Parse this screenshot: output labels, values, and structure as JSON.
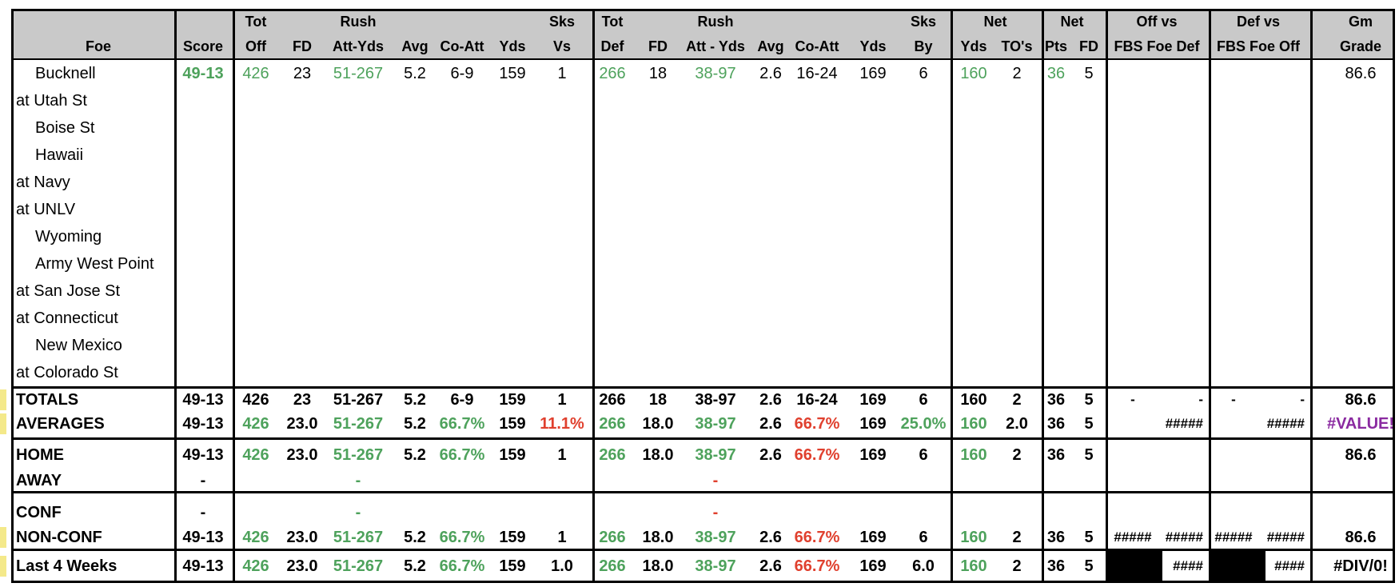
{
  "header": {
    "row1": {
      "tot_off": "Tot",
      "rush_off": "Rush",
      "sks_vs": "Sks",
      "tot_def": "Tot",
      "rush_def": "Rush",
      "sks_by": "Sks",
      "net_yds": "Net",
      "net_pts": "Net",
      "off_vs": "Off vs",
      "def_vs": "Def vs",
      "gm": "Gm"
    },
    "row2": {
      "foe": "Foe",
      "score": "Score",
      "off": "Off",
      "fd": "FD",
      "att_yds": "Att-Yds",
      "avg": "Avg",
      "co_att": "Co-Att",
      "yds": "Yds",
      "vs": "Vs",
      "def": "Def",
      "fd2": "FD",
      "att_yds2": "Att - Yds",
      "avg2": "Avg",
      "co_att2": "Co-Att",
      "yds2": "Yds",
      "by": "By",
      "net_yds": "Yds",
      "tos": "TO's",
      "pts": "Pts",
      "net_fd": "FD",
      "fbs_def": "FBS Foe Def",
      "fbs_off": "FBS Foe Off",
      "grade": "Grade"
    }
  },
  "games": [
    {
      "foe": "Bucknell",
      "away": false,
      "score": "49-13",
      "off": "426",
      "fd": "23",
      "rush": "51-267",
      "avg": "5.2",
      "coatt": "6-9",
      "yds": "159",
      "sks": "1",
      "def": "266",
      "dfd": "18",
      "drush": "38-97",
      "davg": "2.6",
      "dcoatt": "16-24",
      "dyds": "169",
      "dsks": "6",
      "netyds": "160",
      "tos": "2",
      "pts": "36",
      "netfd": "5",
      "grade": "86.6"
    },
    {
      "foe": "at Utah St",
      "away": true
    },
    {
      "foe": "Boise St",
      "away": false
    },
    {
      "foe": "Hawaii",
      "away": false
    },
    {
      "foe": "at Navy",
      "away": true
    },
    {
      "foe": "at UNLV",
      "away": true
    },
    {
      "foe": "Wyoming",
      "away": false
    },
    {
      "foe": "Army West Point",
      "away": false
    },
    {
      "foe": "at San Jose St",
      "away": true
    },
    {
      "foe": "at Connecticut",
      "away": true
    },
    {
      "foe": "New Mexico",
      "away": false
    },
    {
      "foe": "at Colorado St",
      "away": true
    }
  ],
  "summary": {
    "totals": {
      "label": "TOTALS",
      "score": "49-13",
      "off": "426",
      "fd": "23",
      "rush": "51-267",
      "avg": "5.2",
      "coatt": "6-9",
      "yds": "159",
      "sks": "1",
      "def": "266",
      "dfd": "18",
      "drush": "38-97",
      "davg": "2.6",
      "dcoatt": "16-24",
      "dyds": "169",
      "dsks": "6",
      "netyds": "160",
      "tos": "2",
      "pts": "36",
      "netfd": "5",
      "o1": "-",
      "o2": "-",
      "d1": "-",
      "d2": "-",
      "grade": "86.6"
    },
    "averages": {
      "label": "AVERAGES",
      "score": "49-13",
      "off": "426",
      "fd": "23.0",
      "rush": "51-267",
      "avg": "5.2",
      "coatt": "66.7%",
      "yds": "159",
      "sks": "11.1%",
      "def": "266",
      "dfd": "18.0",
      "drush": "38-97",
      "davg": "2.6",
      "dcoatt": "66.7%",
      "dyds": "169",
      "dsks": "25.0%",
      "netyds": "160",
      "tos": "2.0",
      "pts": "36",
      "netfd": "5",
      "o2": "#####",
      "d2": "#####",
      "grade": "#VALUE!"
    },
    "home": {
      "label": "HOME",
      "score": "49-13",
      "off": "426",
      "fd": "23.0",
      "rush": "51-267",
      "avg": "5.2",
      "coatt": "66.7%",
      "yds": "159",
      "sks": "1",
      "def": "266",
      "dfd": "18.0",
      "drush": "38-97",
      "davg": "2.6",
      "dcoatt": "66.7%",
      "dyds": "169",
      "dsks": "6",
      "netyds": "160",
      "tos": "2",
      "pts": "36",
      "netfd": "5",
      "grade": "86.6"
    },
    "away": {
      "label": "AWAY",
      "score": "-",
      "rush": "-",
      "drush": "-"
    },
    "conf": {
      "label": "CONF",
      "score": "-",
      "rush": "-",
      "drush": "-"
    },
    "nonconf": {
      "label": "NON-CONF",
      "score": "49-13",
      "off": "426",
      "fd": "23.0",
      "rush": "51-267",
      "avg": "5.2",
      "coatt": "66.7%",
      "yds": "159",
      "sks": "1",
      "def": "266",
      "dfd": "18.0",
      "drush": "38-97",
      "davg": "2.6",
      "dcoatt": "66.7%",
      "dyds": "169",
      "dsks": "6",
      "netyds": "160",
      "tos": "2",
      "pts": "36",
      "netfd": "5",
      "o1": "#####",
      "o2": "#####",
      "d1": "#####",
      "d2": "#####",
      "grade": "86.6"
    },
    "last4": {
      "label": "Last 4 Weeks",
      "score": "49-13",
      "off": "426",
      "fd": "23.0",
      "rush": "51-267",
      "avg": "5.2",
      "coatt": "66.7%",
      "yds": "159",
      "sks": "1.0",
      "def": "266",
      "dfd": "18.0",
      "drush": "38-97",
      "davg": "2.6",
      "dcoatt": "66.7%",
      "dyds": "169",
      "dsks": "6.0",
      "netyds": "160",
      "tos": "2",
      "pts": "36",
      "netfd": "5",
      "o2": "####",
      "d2": "####",
      "grade": "#DIV/0!"
    }
  },
  "colors": {
    "positive": "#4ea25c",
    "negative": "#e0402e",
    "error": "#8a2aa0",
    "header_bg": "#c9c9c9"
  }
}
